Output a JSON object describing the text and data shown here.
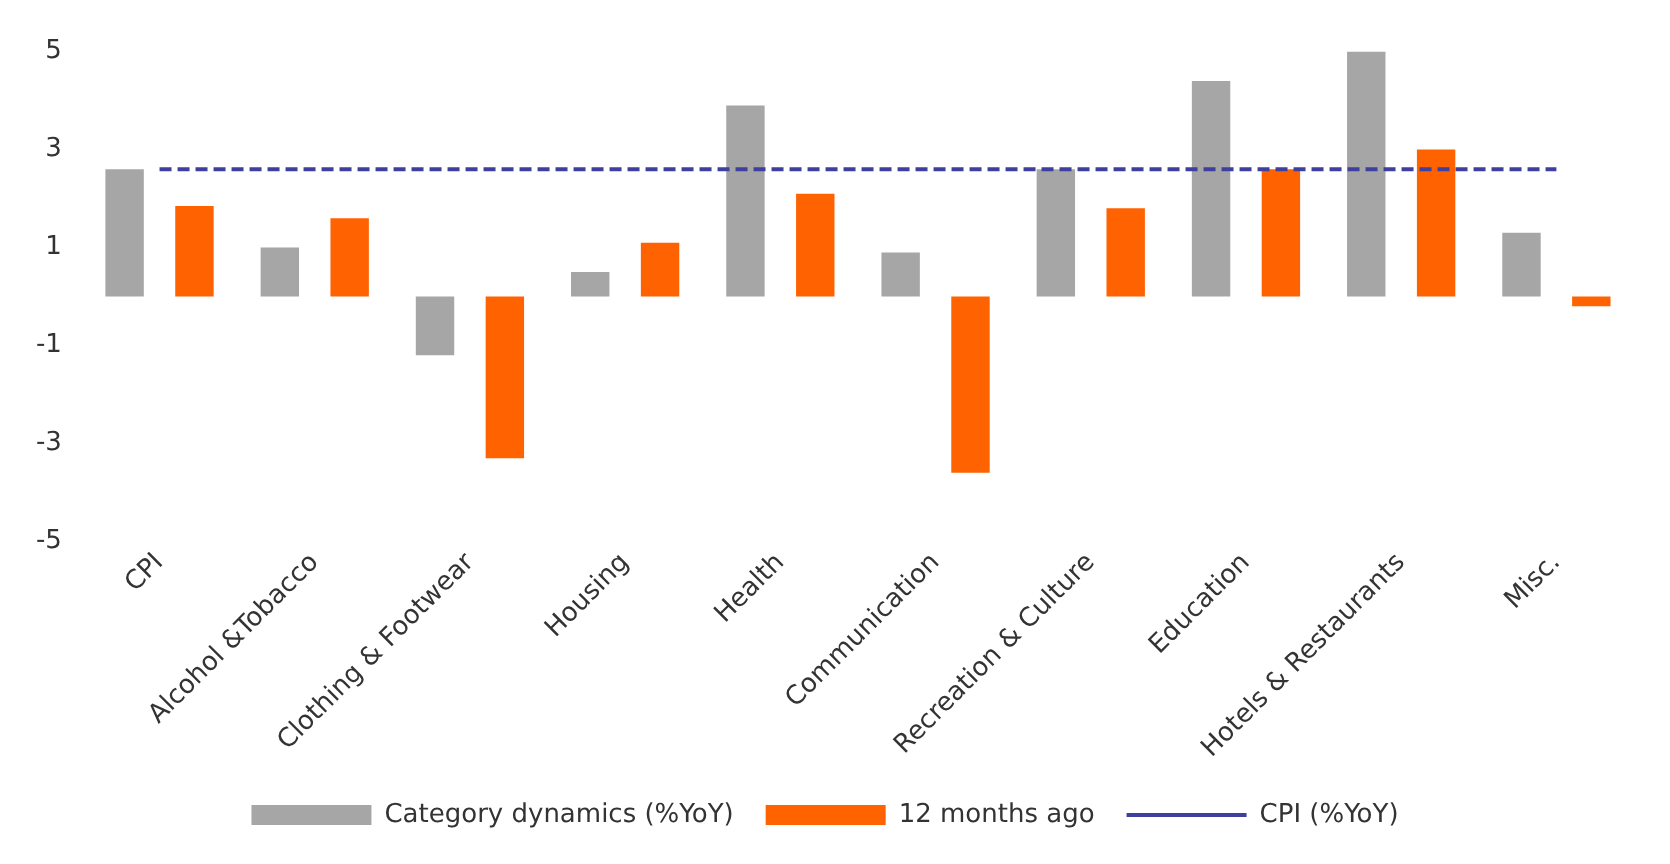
{
  "chart_data": {
    "type": "bar",
    "categories": [
      "CPI",
      "Alcohol &Tobacco",
      "Clothing & Footwear",
      "Housing",
      "Health",
      "Communication",
      "Recreation & Culture",
      "Education",
      "Hotels & Restaurants",
      "Misc."
    ],
    "series": [
      {
        "name": "Category dynamics (%YoY)",
        "color": "#a6a6a6",
        "values": [
          2.6,
          1.0,
          -1.2,
          0.5,
          3.9,
          0.9,
          2.6,
          4.4,
          5.0,
          1.3
        ]
      },
      {
        "name": "12 months ago",
        "color": "#ff6200",
        "values": [
          1.85,
          1.6,
          -3.3,
          1.1,
          2.1,
          -3.6,
          1.8,
          2.6,
          3.0,
          -0.2
        ]
      },
      {
        "name": "CPI (%YoY)",
        "type": "line",
        "color": "#3f3f9f",
        "line_style": "dashed",
        "marker": "none",
        "values": [
          2.6,
          2.6,
          2.6,
          2.6,
          2.6,
          2.6,
          2.6,
          2.6,
          2.6,
          2.6
        ]
      }
    ],
    "ylim": [
      -5,
      5
    ],
    "yticks": [
      -5,
      -3,
      -1,
      1,
      3,
      5
    ],
    "grid": false,
    "legend": "bottom"
  }
}
